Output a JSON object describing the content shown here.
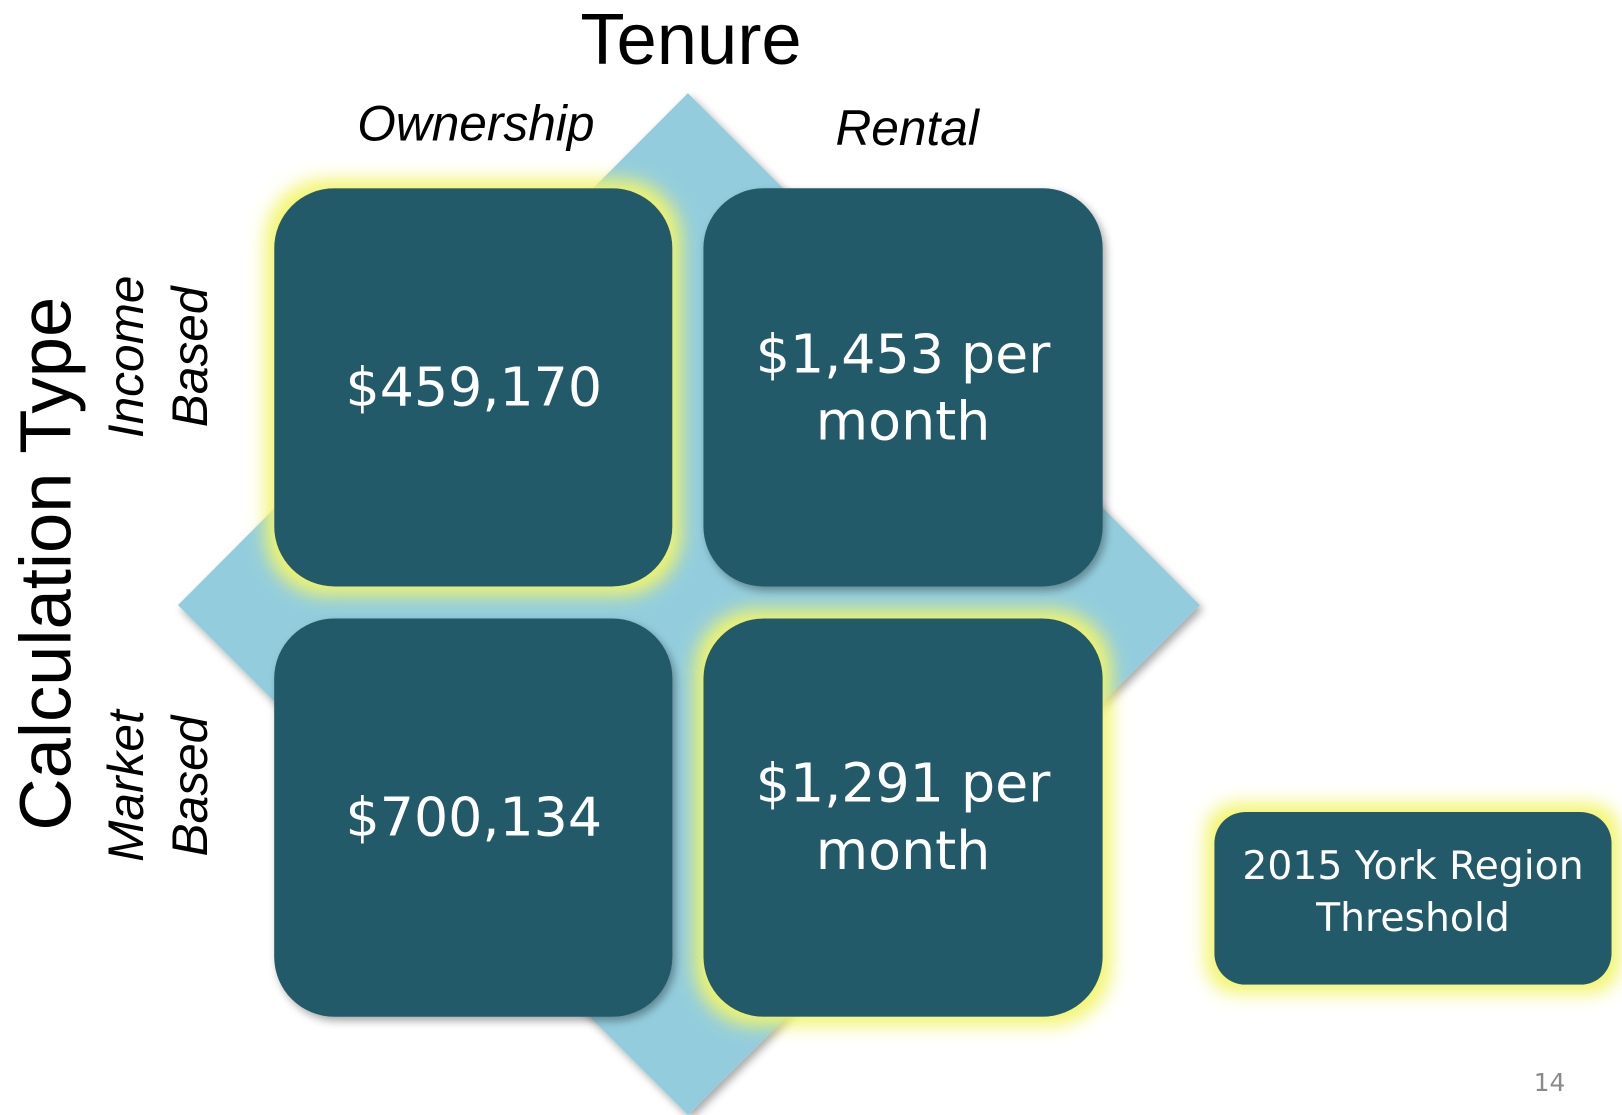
{
  "header": {
    "title": "Tenure"
  },
  "columns": [
    "Ownership",
    "Rental"
  ],
  "row_axis": "Calculation Type",
  "rows": [
    {
      "label": [
        "Income",
        "Based"
      ],
      "cells": [
        [
          "$459,170"
        ],
        [
          "$1,453 per",
          "month"
        ]
      ]
    },
    {
      "label": [
        "Market",
        "Based"
      ],
      "cells": [
        [
          "$700,134"
        ],
        [
          "$1,291 per",
          "month"
        ]
      ]
    }
  ],
  "legend": [
    "2015 York Region",
    "Threshold"
  ],
  "page_number": "14"
}
